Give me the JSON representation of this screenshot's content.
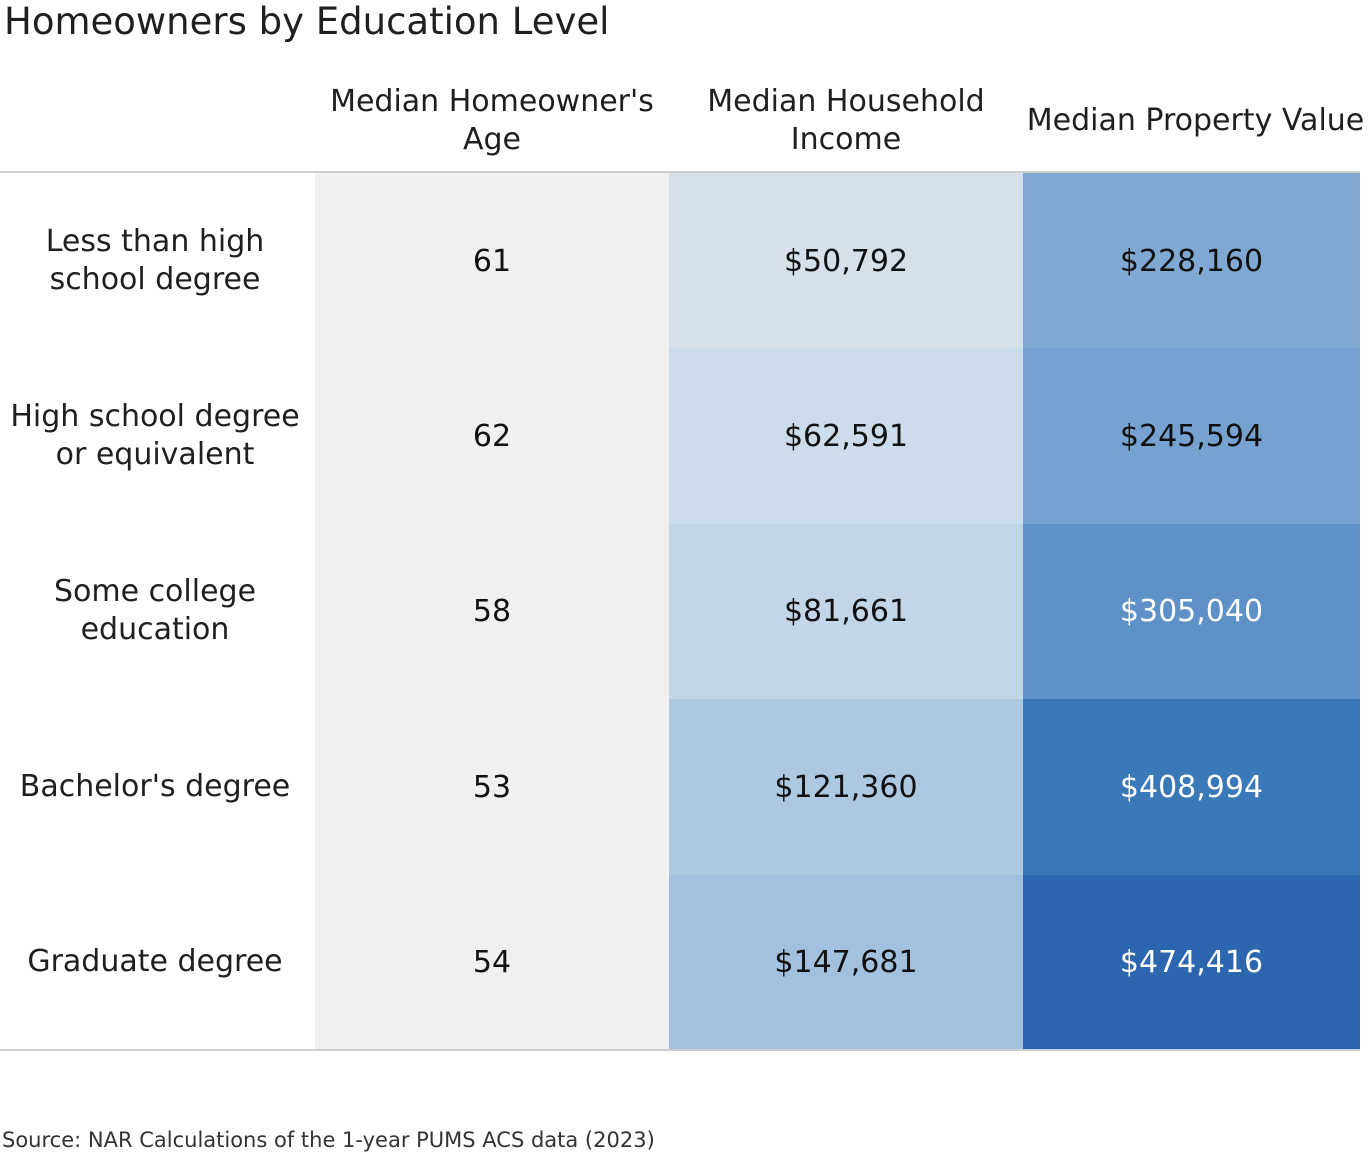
{
  "chart_data": {
    "type": "table",
    "title": "Homeowners by Education Level",
    "columns": [
      "Median Homeowner's Age",
      "Median Household Income",
      "Median Property Value"
    ],
    "rows": [
      {
        "label": "Less than high school degree",
        "age": "61",
        "income": "$50,792",
        "value": "$228,160"
      },
      {
        "label": "High school degree or equivalent",
        "age": "62",
        "income": "$62,591",
        "value": "$245,594"
      },
      {
        "label": "Some college education",
        "age": "58",
        "income": "$81,661",
        "value": "$305,040"
      },
      {
        "label": "Bachelor's degree",
        "age": "53",
        "income": "$121,360",
        "value": "$408,994"
      },
      {
        "label": "Graduate degree",
        "age": "54",
        "income": "$147,681",
        "value": "$474,416"
      }
    ],
    "source": "Source: NAR Calculations of the 1-year PUMS ACS data (2023)",
    "colors": {
      "age": "#f0f0f0",
      "income": [
        "#d6e0ea",
        "#cddcea",
        "#c3d6e7",
        "#adc8e1",
        "#a2c1de"
      ],
      "value": [
        "#7fa8d2",
        "#75a2d0",
        "#5d91c7",
        "#3a79b8",
        "#2c66af"
      ],
      "text_dark": "#111111",
      "text_light": "#ffffff"
    }
  }
}
